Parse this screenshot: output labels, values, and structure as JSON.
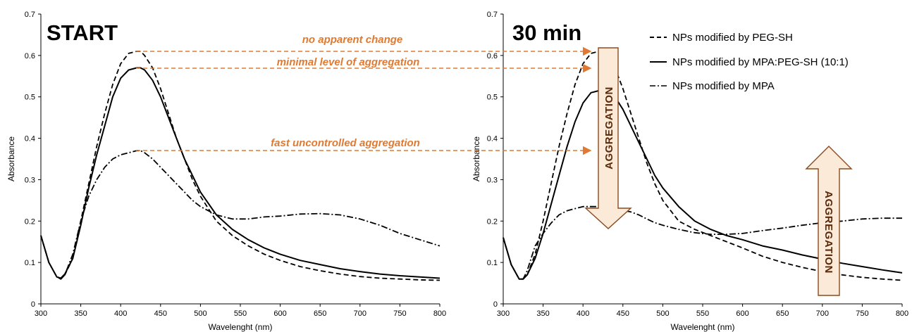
{
  "chart_data": [
    {
      "type": "line",
      "corner_label": "START",
      "xlabel": "Wavelenght  (nm)",
      "ylabel": "Absorbance",
      "xlim": [
        300,
        800
      ],
      "ylim": [
        0,
        0.7
      ],
      "xticks": [
        "300",
        "350",
        "400",
        "450",
        "500",
        "550",
        "600",
        "650",
        "700",
        "750",
        "800"
      ],
      "yticks": [
        "0",
        "0.1",
        "0.2",
        "0.3",
        "0.4",
        "0.5",
        "0.6",
        "0.7"
      ],
      "grid": false,
      "series": [
        {
          "name": "NPs modified by PEG-SH",
          "style": "dashed",
          "x": [
            300,
            310,
            320,
            325,
            330,
            340,
            350,
            360,
            370,
            380,
            390,
            400,
            410,
            420,
            425,
            430,
            440,
            450,
            460,
            470,
            480,
            490,
            500,
            520,
            540,
            560,
            580,
            600,
            625,
            650,
            675,
            700,
            725,
            750,
            775,
            800
          ],
          "y": [
            0.165,
            0.1,
            0.065,
            0.06,
            0.07,
            0.11,
            0.2,
            0.29,
            0.38,
            0.46,
            0.53,
            0.58,
            0.605,
            0.61,
            0.61,
            0.6,
            0.57,
            0.52,
            0.46,
            0.4,
            0.35,
            0.3,
            0.26,
            0.2,
            0.165,
            0.14,
            0.12,
            0.105,
            0.09,
            0.08,
            0.072,
            0.066,
            0.062,
            0.06,
            0.058,
            0.057
          ]
        },
        {
          "name": "NPs modified by MPA:PEG-SH (10:1)",
          "style": "solid",
          "x": [
            300,
            310,
            320,
            325,
            330,
            340,
            350,
            360,
            370,
            380,
            390,
            400,
            410,
            420,
            425,
            430,
            440,
            450,
            460,
            470,
            480,
            490,
            500,
            520,
            540,
            560,
            580,
            600,
            625,
            650,
            675,
            700,
            725,
            750,
            775,
            800
          ],
          "y": [
            0.165,
            0.1,
            0.065,
            0.062,
            0.072,
            0.11,
            0.19,
            0.28,
            0.36,
            0.43,
            0.5,
            0.545,
            0.565,
            0.57,
            0.57,
            0.565,
            0.54,
            0.5,
            0.45,
            0.4,
            0.35,
            0.31,
            0.27,
            0.215,
            0.18,
            0.155,
            0.135,
            0.12,
            0.105,
            0.095,
            0.085,
            0.078,
            0.072,
            0.068,
            0.065,
            0.062
          ]
        },
        {
          "name": "NPs modified by MPA",
          "style": "dashdot",
          "x": [
            300,
            310,
            320,
            325,
            330,
            340,
            350,
            360,
            370,
            380,
            390,
            400,
            410,
            420,
            425,
            430,
            440,
            450,
            460,
            470,
            480,
            490,
            500,
            520,
            540,
            560,
            580,
            600,
            625,
            650,
            675,
            700,
            725,
            750,
            775,
            800
          ],
          "y": [
            0.165,
            0.1,
            0.065,
            0.06,
            0.07,
            0.12,
            0.2,
            0.26,
            0.3,
            0.33,
            0.35,
            0.36,
            0.365,
            0.37,
            0.37,
            0.365,
            0.35,
            0.33,
            0.31,
            0.29,
            0.27,
            0.25,
            0.235,
            0.215,
            0.205,
            0.205,
            0.21,
            0.212,
            0.217,
            0.218,
            0.215,
            0.205,
            0.19,
            0.17,
            0.155,
            0.14
          ]
        }
      ]
    },
    {
      "type": "line",
      "corner_label": "30 min",
      "xlabel": "Wavelenght  (nm)",
      "ylabel": "Absorbance",
      "xlim": [
        300,
        800
      ],
      "ylim": [
        0,
        0.7
      ],
      "xticks": [
        "300",
        "350",
        "400",
        "450",
        "500",
        "550",
        "600",
        "650",
        "700",
        "750",
        "800"
      ],
      "yticks": [
        "0",
        "0.1",
        "0.2",
        "0.3",
        "0.4",
        "0.5",
        "0.6",
        "0.7"
      ],
      "grid": false,
      "legend_position": "top-right",
      "series": [
        {
          "name": "NPs modified by PEG-SH",
          "style": "dashed",
          "x": [
            300,
            310,
            320,
            325,
            330,
            340,
            350,
            360,
            370,
            380,
            390,
            400,
            410,
            420,
            425,
            430,
            440,
            450,
            460,
            470,
            480,
            490,
            500,
            520,
            540,
            560,
            580,
            600,
            625,
            650,
            675,
            700,
            725,
            750,
            775,
            800
          ],
          "y": [
            0.16,
            0.095,
            0.06,
            0.06,
            0.07,
            0.12,
            0.2,
            0.29,
            0.38,
            0.46,
            0.53,
            0.58,
            0.605,
            0.61,
            0.61,
            0.6,
            0.57,
            0.52,
            0.46,
            0.4,
            0.34,
            0.29,
            0.25,
            0.2,
            0.18,
            0.165,
            0.15,
            0.135,
            0.115,
            0.1,
            0.088,
            0.078,
            0.07,
            0.064,
            0.06,
            0.057
          ]
        },
        {
          "name": "NPs modified by MPA:PEG-SH (10:1)",
          "style": "solid",
          "x": [
            300,
            310,
            320,
            325,
            330,
            340,
            350,
            360,
            370,
            380,
            390,
            400,
            410,
            420,
            425,
            430,
            440,
            450,
            460,
            470,
            480,
            490,
            500,
            520,
            540,
            560,
            580,
            600,
            625,
            650,
            675,
            700,
            725,
            750,
            775,
            800
          ],
          "y": [
            0.16,
            0.095,
            0.06,
            0.06,
            0.07,
            0.11,
            0.17,
            0.24,
            0.31,
            0.38,
            0.44,
            0.485,
            0.51,
            0.515,
            0.515,
            0.515,
            0.5,
            0.47,
            0.43,
            0.39,
            0.35,
            0.31,
            0.28,
            0.235,
            0.2,
            0.18,
            0.165,
            0.155,
            0.14,
            0.13,
            0.118,
            0.108,
            0.098,
            0.09,
            0.082,
            0.075
          ]
        },
        {
          "name": "NPs modified by MPA",
          "style": "dashdot",
          "x": [
            300,
            310,
            320,
            325,
            330,
            340,
            350,
            360,
            370,
            380,
            390,
            400,
            410,
            420,
            425,
            430,
            440,
            450,
            460,
            470,
            480,
            490,
            500,
            520,
            540,
            560,
            580,
            600,
            625,
            650,
            675,
            700,
            725,
            750,
            775,
            800
          ],
          "y": [
            0.16,
            0.095,
            0.06,
            0.06,
            0.08,
            0.14,
            0.17,
            0.195,
            0.215,
            0.225,
            0.23,
            0.235,
            0.235,
            0.235,
            0.235,
            0.233,
            0.23,
            0.226,
            0.222,
            0.215,
            0.205,
            0.196,
            0.19,
            0.18,
            0.172,
            0.168,
            0.168,
            0.17,
            0.177,
            0.183,
            0.19,
            0.196,
            0.2,
            0.205,
            0.207,
            0.207
          ]
        }
      ]
    }
  ],
  "annotations": {
    "arrow_1": "no apparent change",
    "arrow_2": "minimal level of aggregation",
    "arrow_3": "fast uncontrolled aggregation",
    "aggregation_down": "AGGREGATION",
    "aggregation_up": "AGGREGATION"
  },
  "colors": {
    "annotation": "#e07a32",
    "aggregation_fill": "#fbead8",
    "aggregation_stroke": "#8b4a1e",
    "aggregation_text": "#5a2a0a",
    "curves": "#000000"
  }
}
